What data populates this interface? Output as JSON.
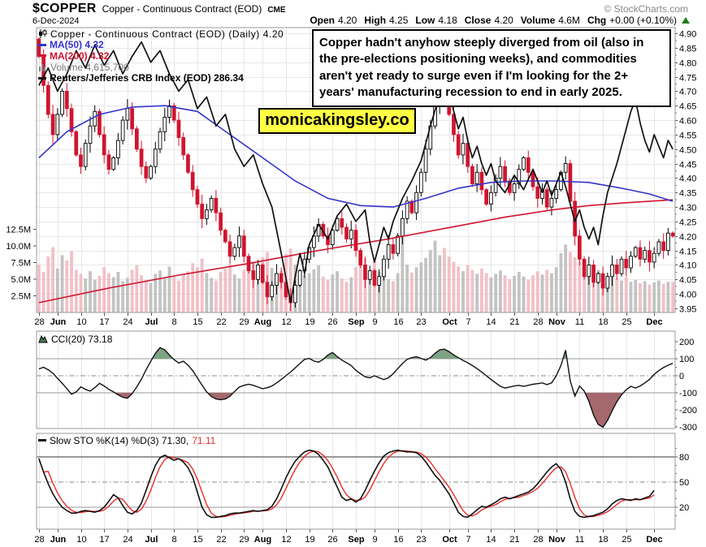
{
  "header": {
    "symbol": "$COPPER",
    "description": "Copper - Continuous Contract (EOD)",
    "exchange": "CME",
    "copyright": "© StockCharts.com",
    "date": "6-Dec-2024",
    "quote": {
      "open_label": "Open",
      "open": "4.20",
      "high_label": "High",
      "high": "4.25",
      "low_label": "Low",
      "low": "4.18",
      "close_label": "Close",
      "close": "4.20",
      "volume_label": "Volume",
      "volume": "4.6M",
      "chg_label": "Chg",
      "chg": "+0.00 (+0.10%)"
    }
  },
  "main_legend": {
    "title": "Copper - Continuous Contract (EOD) (Daily) 4.20",
    "ma50": "MA(50) 4.32",
    "ma200": "MA(200) 4.32",
    "volume": "Volume 4,615,700",
    "crb": "Reuters/Jefferies CRB Index (EOD) 286.34"
  },
  "cci_legend": "CCI(20) 73.18",
  "sto_legend": {
    "black": "Slow STO %K(14) %D(3) 71.30,",
    "red": "71.11"
  },
  "annotation": "Copper hadn't anyhow steeply diverged from oil (also in the pre-elections positioning weeks), and commodities aren't yet ready to surge even if I'm looking for the 2+ years' manufacturing recession to end in early 2025.",
  "watermark": "monicakingsley.co",
  "colors": {
    "accent_blue": "#3333cc",
    "accent_red": "#d0142f",
    "volume_up": "#bcbcbc",
    "volume_down": "#f2b9c1",
    "cci_fill_pos": "#7ea284",
    "cci_fill_neg": "#a4686d",
    "sto_red": "#e82c2c",
    "grid": "#e7e7e7",
    "border": "#999999",
    "watermark_bg": "#ffff44",
    "green_arrow": "#1f7a1f",
    "gray_text": "#888888"
  },
  "chart_data": {
    "type": "candlestick",
    "title": "Copper - Continuous Contract (EOD) (Daily)",
    "legend_position": "top-left",
    "grid": true,
    "x_ticks": [
      {
        "l": "28",
        "i": 0,
        "b": 0
      },
      {
        "l": "Jun",
        "i": 4,
        "b": 1
      },
      {
        "l": "10",
        "i": 9,
        "b": 0
      },
      {
        "l": "17",
        "i": 14,
        "b": 0
      },
      {
        "l": "24",
        "i": 19,
        "b": 0
      },
      {
        "l": "Jul",
        "i": 24,
        "b": 1
      },
      {
        "l": "8",
        "i": 29,
        "b": 0
      },
      {
        "l": "15",
        "i": 34,
        "b": 0
      },
      {
        "l": "22",
        "i": 39,
        "b": 0
      },
      {
        "l": "29",
        "i": 44,
        "b": 0
      },
      {
        "l": "Aug",
        "i": 48,
        "b": 1
      },
      {
        "l": "12",
        "i": 53,
        "b": 0
      },
      {
        "l": "19",
        "i": 58,
        "b": 0
      },
      {
        "l": "26",
        "i": 63,
        "b": 0
      },
      {
        "l": "Sep",
        "i": 68,
        "b": 1
      },
      {
        "l": "9",
        "i": 72,
        "b": 0
      },
      {
        "l": "16",
        "i": 77,
        "b": 0
      },
      {
        "l": "23",
        "i": 82,
        "b": 0
      },
      {
        "l": "Oct",
        "i": 88,
        "b": 1
      },
      {
        "l": "7",
        "i": 92,
        "b": 0
      },
      {
        "l": "14",
        "i": 97,
        "b": 0
      },
      {
        "l": "21",
        "i": 102,
        "b": 0
      },
      {
        "l": "28",
        "i": 107,
        "b": 0
      },
      {
        "l": "Nov",
        "i": 111,
        "b": 1
      },
      {
        "l": "11",
        "i": 116,
        "b": 0
      },
      {
        "l": "18",
        "i": 121,
        "b": 0
      },
      {
        "l": "25",
        "i": 126,
        "b": 0
      },
      {
        "l": "Dec",
        "i": 132,
        "b": 1
      }
    ],
    "price_axis_labels": [
      "4.90",
      "4.85",
      "4.80",
      "4.75",
      "4.70",
      "4.65",
      "4.60",
      "4.55",
      "4.50",
      "4.45",
      "4.40",
      "4.35",
      "4.30",
      "4.25",
      "4.20",
      "4.15",
      "4.10",
      "4.05",
      "4.00",
      "3.95"
    ],
    "volume_axis": [
      {
        "l": "12.5M",
        "v": 12.5
      },
      {
        "l": "10.0M",
        "v": 10
      },
      {
        "l": "7.5M",
        "v": 7.5
      },
      {
        "l": "5.0M",
        "v": 5
      },
      {
        "l": "2.5M",
        "v": 2.5
      }
    ],
    "main": {
      "ylim": [
        3.95,
        4.9
      ],
      "open_first": 4.88,
      "last_ohlc": {
        "open": 4.2,
        "high": 4.25,
        "low": 4.18,
        "close": 4.2
      },
      "closes": [
        4.82,
        4.72,
        4.62,
        4.55,
        4.62,
        4.7,
        4.64,
        4.56,
        4.48,
        4.44,
        4.52,
        4.58,
        4.63,
        4.55,
        4.48,
        4.43,
        4.47,
        4.53,
        4.6,
        4.64,
        4.57,
        4.5,
        4.44,
        4.4,
        4.44,
        4.5,
        4.56,
        4.61,
        4.65,
        4.6,
        4.54,
        4.48,
        4.42,
        4.36,
        4.31,
        4.26,
        4.29,
        4.33,
        4.28,
        4.22,
        4.18,
        4.13,
        4.16,
        4.2,
        4.13,
        4.08,
        4.05,
        4.1,
        4.04,
        3.99,
        4.03,
        4.07,
        4.04,
        3.99,
        3.97,
        4.03,
        4.08,
        4.12,
        4.16,
        4.2,
        4.24,
        4.2,
        4.17,
        4.22,
        4.26,
        4.23,
        4.19,
        4.22,
        4.15,
        4.1,
        4.05,
        4.08,
        4.03,
        4.06,
        4.12,
        4.17,
        4.14,
        4.2,
        4.26,
        4.32,
        4.28,
        4.35,
        4.42,
        4.5,
        4.58,
        4.65,
        4.7,
        4.67,
        4.62,
        4.55,
        4.48,
        4.52,
        4.44,
        4.38,
        4.42,
        4.36,
        4.31,
        4.35,
        4.4,
        4.44,
        4.39,
        4.35,
        4.38,
        4.43,
        4.47,
        4.42,
        4.37,
        4.33,
        4.36,
        4.3,
        4.33,
        4.36,
        4.42,
        4.45,
        4.32,
        4.2,
        4.12,
        4.06,
        4.1,
        4.04,
        4.07,
        4.02,
        4.06,
        4.1,
        4.07,
        4.12,
        4.09,
        4.13,
        4.16,
        4.12,
        4.15,
        4.11,
        4.14,
        4.18,
        4.15,
        4.21,
        4.2
      ],
      "volume_m": [
        7.2,
        6.1,
        8.4,
        9.8,
        6.6,
        8.6,
        7.8,
        9.2,
        6.4,
        5.8,
        5.1,
        6.2,
        4.9,
        5.5,
        6.8,
        5.9,
        5.3,
        6.1,
        4.7,
        5.2,
        6.4,
        7.1,
        5.6,
        4.9,
        4.4,
        5.8,
        6.3,
        5.1,
        6.9,
        5.4,
        4.8,
        5.7,
        6.2,
        7.4,
        6.8,
        8.1,
        5.9,
        5.2,
        4.8,
        6.1,
        6.6,
        7.3,
        5.7,
        5.1,
        6.4,
        7.0,
        7.6,
        6.2,
        8.3,
        9.1,
        6.7,
        5.9,
        6.3,
        8.8,
        9.6,
        7.2,
        6.1,
        5.6,
        5.9,
        6.5,
        7.1,
        5.4,
        4.9,
        5.7,
        6.2,
        5.1,
        4.6,
        5.3,
        6.8,
        7.4,
        8.1,
        6.3,
        7.7,
        6.1,
        5.6,
        5.0,
        4.7,
        5.9,
        12.9,
        7.2,
        6.0,
        6.8,
        7.5,
        8.2,
        9.4,
        10.8,
        8.6,
        9.7,
        8.4,
        7.6,
        6.9,
        6.2,
        7.1,
        6.4,
        5.8,
        6.6,
        5.9,
        5.3,
        5.8,
        6.3,
        5.6,
        5.0,
        5.5,
        6.1,
        5.4,
        4.9,
        5.6,
        6.2,
        5.7,
        6.4,
        5.9,
        6.8,
        8.9,
        10.2,
        9.1,
        8.3,
        7.6,
        6.9,
        6.1,
        7.2,
        6.4,
        5.8,
        5.2,
        5.7,
        5.1,
        4.8,
        5.3,
        4.6,
        4.9,
        4.4,
        4.7,
        4.2,
        4.5,
        4.8,
        4.3,
        4.6,
        4.6
      ],
      "ma50": [
        [
          0,
          4.47
        ],
        [
          6,
          4.56
        ],
        [
          13,
          4.62
        ],
        [
          20,
          4.645
        ],
        [
          27,
          4.65
        ],
        [
          34,
          4.63
        ],
        [
          41,
          4.55
        ],
        [
          48,
          4.47
        ],
        [
          55,
          4.39
        ],
        [
          62,
          4.33
        ],
        [
          69,
          4.305
        ],
        [
          76,
          4.3
        ],
        [
          83,
          4.33
        ],
        [
          90,
          4.365
        ],
        [
          97,
          4.385
        ],
        [
          104,
          4.39
        ],
        [
          111,
          4.39
        ],
        [
          118,
          4.385
        ],
        [
          125,
          4.365
        ],
        [
          131,
          4.345
        ],
        [
          136,
          4.32
        ]
      ],
      "ma200": [
        [
          0,
          3.97
        ],
        [
          15,
          4.02
        ],
        [
          30,
          4.065
        ],
        [
          45,
          4.105
        ],
        [
          60,
          4.15
        ],
        [
          75,
          4.19
        ],
        [
          90,
          4.235
        ],
        [
          100,
          4.265
        ],
        [
          110,
          4.29
        ],
        [
          118,
          4.305
        ],
        [
          126,
          4.315
        ],
        [
          136,
          4.325
        ]
      ],
      "crb": [
        [
          0,
          4.72
        ],
        [
          2,
          4.78
        ],
        [
          4,
          4.7
        ],
        [
          6,
          4.76
        ],
        [
          8,
          4.84
        ],
        [
          10,
          4.78
        ],
        [
          12,
          4.86
        ],
        [
          14,
          4.79
        ],
        [
          16,
          4.84
        ],
        [
          18,
          4.76
        ],
        [
          20,
          4.82
        ],
        [
          22,
          4.87
        ],
        [
          24,
          4.8
        ],
        [
          26,
          4.84
        ],
        [
          28,
          4.76
        ],
        [
          30,
          4.7
        ],
        [
          32,
          4.74
        ],
        [
          34,
          4.64
        ],
        [
          36,
          4.68
        ],
        [
          38,
          4.58
        ],
        [
          40,
          4.62
        ],
        [
          42,
          4.5
        ],
        [
          44,
          4.44
        ],
        [
          46,
          4.48
        ],
        [
          48,
          4.38
        ],
        [
          50,
          4.3
        ],
        [
          52,
          4.14
        ],
        [
          54,
          3.97
        ],
        [
          55,
          4.06
        ],
        [
          56,
          4.14
        ],
        [
          57,
          4.07
        ],
        [
          58,
          4.17
        ],
        [
          60,
          4.24
        ],
        [
          62,
          4.19
        ],
        [
          64,
          4.27
        ],
        [
          66,
          4.31
        ],
        [
          68,
          4.25
        ],
        [
          70,
          4.29
        ],
        [
          71,
          4.18
        ],
        [
          72,
          4.11
        ],
        [
          73,
          4.17
        ],
        [
          74,
          4.23
        ],
        [
          75,
          4.19
        ],
        [
          76,
          4.25
        ],
        [
          78,
          4.33
        ],
        [
          80,
          4.39
        ],
        [
          82,
          4.46
        ],
        [
          84,
          4.58
        ],
        [
          86,
          4.69
        ],
        [
          87,
          4.65
        ],
        [
          88,
          4.71
        ],
        [
          89,
          4.63
        ],
        [
          90,
          4.57
        ],
        [
          91,
          4.61
        ],
        [
          92,
          4.53
        ],
        [
          93,
          4.47
        ],
        [
          94,
          4.51
        ],
        [
          95,
          4.45
        ],
        [
          96,
          4.41
        ],
        [
          97,
          4.45
        ],
        [
          98,
          4.39
        ],
        [
          100,
          4.35
        ],
        [
          102,
          4.41
        ],
        [
          104,
          4.36
        ],
        [
          106,
          4.43
        ],
        [
          107,
          4.39
        ],
        [
          108,
          4.35
        ],
        [
          109,
          4.39
        ],
        [
          110,
          4.34
        ],
        [
          111,
          4.38
        ],
        [
          112,
          4.42
        ],
        [
          113,
          4.37
        ],
        [
          114,
          4.31
        ],
        [
          115,
          4.25
        ],
        [
          116,
          4.29
        ],
        [
          117,
          4.23
        ],
        [
          118,
          4.19
        ],
        [
          119,
          4.23
        ],
        [
          120,
          4.17
        ],
        [
          121,
          4.27
        ],
        [
          122,
          4.35
        ],
        [
          124,
          4.45
        ],
        [
          126,
          4.57
        ],
        [
          127,
          4.63
        ],
        [
          128,
          4.67
        ],
        [
          129,
          4.59
        ],
        [
          130,
          4.53
        ],
        [
          131,
          4.49
        ],
        [
          132,
          4.55
        ],
        [
          133,
          4.51
        ],
        [
          134,
          4.47
        ],
        [
          135,
          4.53
        ],
        [
          136,
          4.5
        ]
      ]
    },
    "cci": {
      "axis": [
        200,
        100,
        0,
        -100,
        -200,
        -300
      ],
      "bands": [
        100,
        -100
      ],
      "last": 73.18,
      "values": [
        40,
        50,
        35,
        15,
        -15,
        -45,
        -75,
        -108,
        -95,
        -65,
        -80,
        -90,
        -70,
        -45,
        -60,
        -80,
        -95,
        -112,
        -126,
        -132,
        -105,
        -65,
        -20,
        35,
        85,
        132,
        165,
        152,
        122,
        95,
        75,
        85,
        62,
        30,
        -12,
        -55,
        -95,
        -122,
        -136,
        -141,
        -136,
        -120,
        -92,
        -66,
        -56,
        -50,
        -56,
        -66,
        -76,
        -70,
        -60,
        -42,
        -22,
        0,
        22,
        46,
        72,
        96,
        102,
        86,
        80,
        96,
        122,
        136,
        112,
        92,
        76,
        60,
        32,
        12,
        -6,
        -12,
        0,
        -12,
        -22,
        -12,
        12,
        42,
        72,
        96,
        106,
        112,
        102,
        92,
        106,
        132,
        152,
        156,
        142,
        122,
        106,
        90,
        76,
        60,
        42,
        22,
        0,
        -22,
        -42,
        -62,
        -72,
        -66,
        -60,
        -56,
        -62,
        -56,
        -50,
        -46,
        -42,
        -52,
        -42,
        0,
        60,
        150,
        -30,
        -120,
        -60,
        -90,
        -150,
        -230,
        -285,
        -302,
        -262,
        -205,
        -152,
        -112,
        -82,
        -62,
        -72,
        -60,
        -42,
        -22,
        8,
        30,
        48,
        62,
        73
      ]
    },
    "sto": {
      "axis": [
        80,
        50,
        20
      ],
      "last_k": 71.3,
      "last_d": 71.11,
      "k": [
        78,
        62,
        48,
        36,
        27,
        20,
        16,
        13,
        13,
        15,
        16,
        15,
        14,
        16,
        20,
        27,
        35,
        31,
        22,
        14,
        12,
        16,
        25,
        40,
        56,
        70,
        79,
        82,
        79,
        76,
        78,
        74,
        67,
        56,
        38,
        20,
        11,
        8,
        8,
        9,
        10,
        12,
        13,
        13,
        14,
        15,
        16,
        15,
        16,
        17,
        21,
        30,
        42,
        55,
        66,
        75,
        81,
        86,
        88,
        87,
        83,
        76,
        68,
        56,
        44,
        32,
        28,
        30,
        26,
        30,
        40,
        52,
        63,
        73,
        81,
        85,
        87,
        88,
        87,
        86,
        86,
        85,
        81,
        74,
        66,
        58,
        52,
        44,
        36,
        25,
        14,
        9,
        8,
        12,
        17,
        21,
        20,
        23,
        26,
        30,
        32,
        30,
        32,
        34,
        36,
        38,
        42,
        48,
        55,
        62,
        68,
        72,
        65,
        50,
        30,
        15,
        9,
        8,
        9,
        10,
        12,
        14,
        18,
        24,
        28,
        30,
        29,
        28,
        30,
        29,
        31,
        33,
        40
      ],
      "k_tail_note": "final values rise to 71.30"
    }
  }
}
